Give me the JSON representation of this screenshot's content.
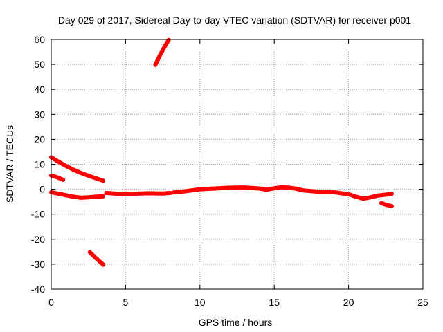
{
  "chart_data": {
    "type": "scatter",
    "title": "Day 029 of 2017, Sidereal Day-to-day VTEC variation (SDTVAR) for receiver p001",
    "xlabel": "GPS time / hours",
    "ylabel": "SDTVAR / TECUs",
    "xlim": [
      0,
      25
    ],
    "ylim": [
      -40,
      60
    ],
    "xticks": [
      0,
      5,
      10,
      15,
      20,
      25
    ],
    "yticks": [
      -40,
      -30,
      -20,
      -10,
      0,
      10,
      20,
      30,
      40,
      50,
      60
    ],
    "grid": true,
    "color": "#ff0000",
    "segments": [
      {
        "x": [
          0.0,
          0.5,
          1.0,
          1.5,
          2.0,
          2.5,
          3.0,
          3.5
        ],
        "y": [
          12.8,
          11.0,
          9.3,
          7.8,
          6.5,
          5.4,
          4.4,
          3.4
        ]
      },
      {
        "x": [
          0.0,
          0.4,
          0.8
        ],
        "y": [
          5.5,
          4.8,
          3.8
        ]
      },
      {
        "x": [
          0.0,
          0.5,
          1.0,
          1.5,
          2.0,
          2.5,
          3.0,
          3.5
        ],
        "y": [
          -1.2,
          -1.8,
          -2.4,
          -3.0,
          -3.4,
          -3.2,
          -3.0,
          -2.8
        ]
      },
      {
        "x": [
          3.7,
          4.5,
          5.5,
          6.5,
          7.5,
          8.0
        ],
        "y": [
          -1.5,
          -1.8,
          -1.8,
          -1.6,
          -1.7,
          -1.5
        ]
      },
      {
        "x": [
          8.2,
          9.0,
          10.0,
          11.0,
          12.0,
          13.0,
          14.0,
          14.5
        ],
        "y": [
          -1.3,
          -0.8,
          0.0,
          0.3,
          0.6,
          0.7,
          0.3,
          -0.2
        ]
      },
      {
        "x": [
          14.5,
          15.0,
          15.5,
          16.0,
          16.5,
          17.0,
          18.0,
          19.0,
          20.0,
          20.5,
          21.0,
          21.5,
          22.0,
          22.5,
          22.9
        ],
        "y": [
          -0.2,
          0.4,
          0.8,
          0.6,
          0.2,
          -0.5,
          -1.0,
          -1.2,
          -2.0,
          -3.0,
          -3.8,
          -3.2,
          -2.5,
          -2.2,
          -1.8
        ]
      },
      {
        "x": [
          22.2,
          22.5,
          22.9
        ],
        "y": [
          -5.5,
          -6.2,
          -6.8
        ]
      },
      {
        "x": [
          2.6,
          3.0,
          3.5
        ],
        "y": [
          -25.2,
          -27.5,
          -30.2
        ]
      },
      {
        "x": [
          7.0,
          7.3,
          7.6,
          7.9
        ],
        "y": [
          49.8,
          53.5,
          56.8,
          59.8
        ]
      }
    ]
  }
}
